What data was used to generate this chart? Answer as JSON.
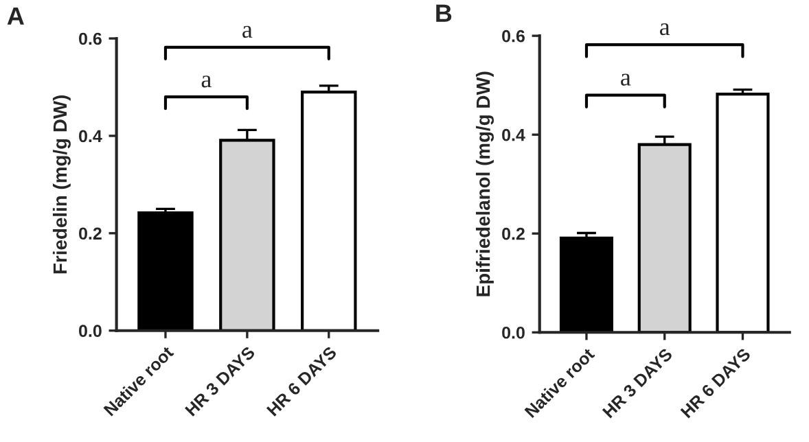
{
  "chart_data": [
    {
      "type": "bar",
      "title": "A",
      "ylabel": "Friedelin (mg/g DW)",
      "categories": [
        "Native root",
        "HR 3 DAYS",
        "HR 6 DAYS"
      ],
      "values": [
        0.242,
        0.391,
        0.49
      ],
      "colors": [
        "#000000",
        "#d3d3d3",
        "#ffffff"
      ],
      "errors": [
        [
          0.242,
          0.25
        ],
        [
          0.391,
          0.412
        ],
        [
          0.49,
          0.503
        ]
      ],
      "ylim": [
        0,
        0.6
      ],
      "yticks": [
        {
          "value": 0,
          "label": "0.0"
        },
        {
          "value": 0.2,
          "label": "0.2"
        },
        {
          "value": 0.4,
          "label": "0.4"
        },
        {
          "value": 0.6,
          "label": "0.6"
        }
      ],
      "grid": false,
      "legend": false,
      "annotations": [
        "a",
        "a"
      ]
    },
    {
      "type": "bar",
      "title": "B",
      "ylabel": "Epifriedelanol (mg/g DW)",
      "categories": [
        "Native root",
        "HR 3 DAYS",
        "HR 6 DAYS"
      ],
      "values": [
        0.191,
        0.38,
        0.482
      ],
      "colors": [
        "#000000",
        "#d3d3d3",
        "#ffffff"
      ],
      "errors": [
        [
          0.191,
          0.201
        ],
        [
          0.38,
          0.396
        ],
        [
          0.482,
          0.491
        ]
      ],
      "ylim": [
        0,
        0.6
      ],
      "yticks": [
        {
          "value": 0,
          "label": "0.0"
        },
        {
          "value": 0.2,
          "label": "0.2"
        },
        {
          "value": 0.4,
          "label": "0.4"
        },
        {
          "value": 0.6,
          "label": "0.6"
        }
      ],
      "grid": false,
      "legend": false,
      "annotations": [
        "a",
        "a"
      ]
    }
  ]
}
